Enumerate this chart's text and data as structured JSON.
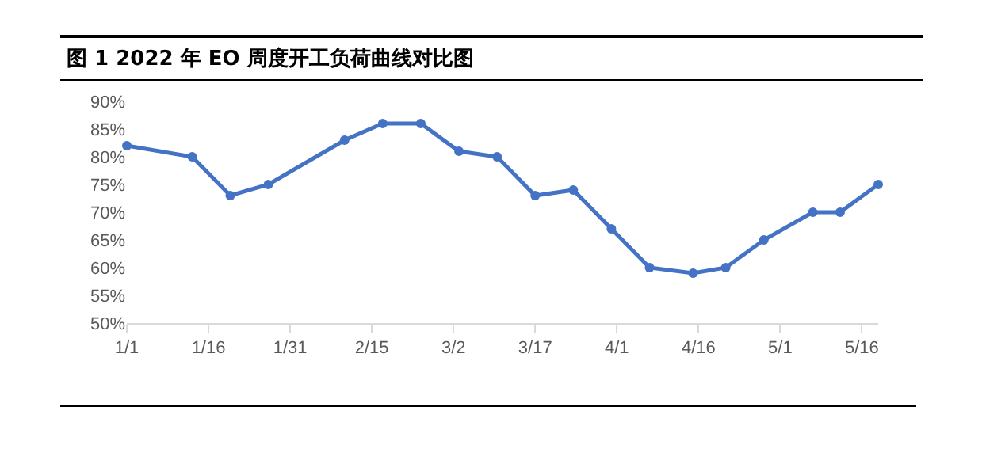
{
  "chart_data": {
    "type": "line",
    "title": "图 1 2022 年 EO 周度开工负荷曲线对比图",
    "x": [
      "2022-01-01",
      "2022-01-13",
      "2022-01-20",
      "2022-01-27",
      "2022-02-10",
      "2022-02-17",
      "2022-02-24",
      "2022-03-03",
      "2022-03-10",
      "2022-03-17",
      "2022-03-24",
      "2022-03-31",
      "2022-04-07",
      "2022-04-15",
      "2022-04-21",
      "2022-04-28",
      "2022-05-07",
      "2022-05-12",
      "2022-05-19"
    ],
    "series": [
      {
        "color": "#4472c4",
        "values": [
          82,
          80,
          73,
          75,
          83,
          86,
          86,
          81,
          80,
          73,
          74,
          67,
          60,
          59,
          60,
          65,
          70,
          70,
          75
        ]
      }
    ],
    "xlim": [
      "2022-01-01",
      "2022-05-19"
    ],
    "xticks": [
      {
        "value": "2022-01-01",
        "label": "1/1"
      },
      {
        "value": "2022-01-16",
        "label": "1/16"
      },
      {
        "value": "2022-01-31",
        "label": "1/31"
      },
      {
        "value": "2022-02-15",
        "label": "2/15"
      },
      {
        "value": "2022-03-02",
        "label": "3/2"
      },
      {
        "value": "2022-03-17",
        "label": "3/17"
      },
      {
        "value": "2022-04-01",
        "label": "4/1"
      },
      {
        "value": "2022-04-16",
        "label": "4/16"
      },
      {
        "value": "2022-05-01",
        "label": "5/1"
      },
      {
        "value": "2022-05-16",
        "label": "5/16"
      }
    ],
    "ylim": [
      50,
      90
    ],
    "yticks": [
      {
        "value": 50,
        "label": "50%"
      },
      {
        "value": 55,
        "label": "55%"
      },
      {
        "value": 60,
        "label": "60%"
      },
      {
        "value": 65,
        "label": "65%"
      },
      {
        "value": 70,
        "label": "70%"
      },
      {
        "value": 75,
        "label": "75%"
      },
      {
        "value": 80,
        "label": "80%"
      },
      {
        "value": 85,
        "label": "85%"
      },
      {
        "value": 90,
        "label": "90%"
      }
    ],
    "grid": false,
    "marker": "circle",
    "line_style": "solid"
  }
}
